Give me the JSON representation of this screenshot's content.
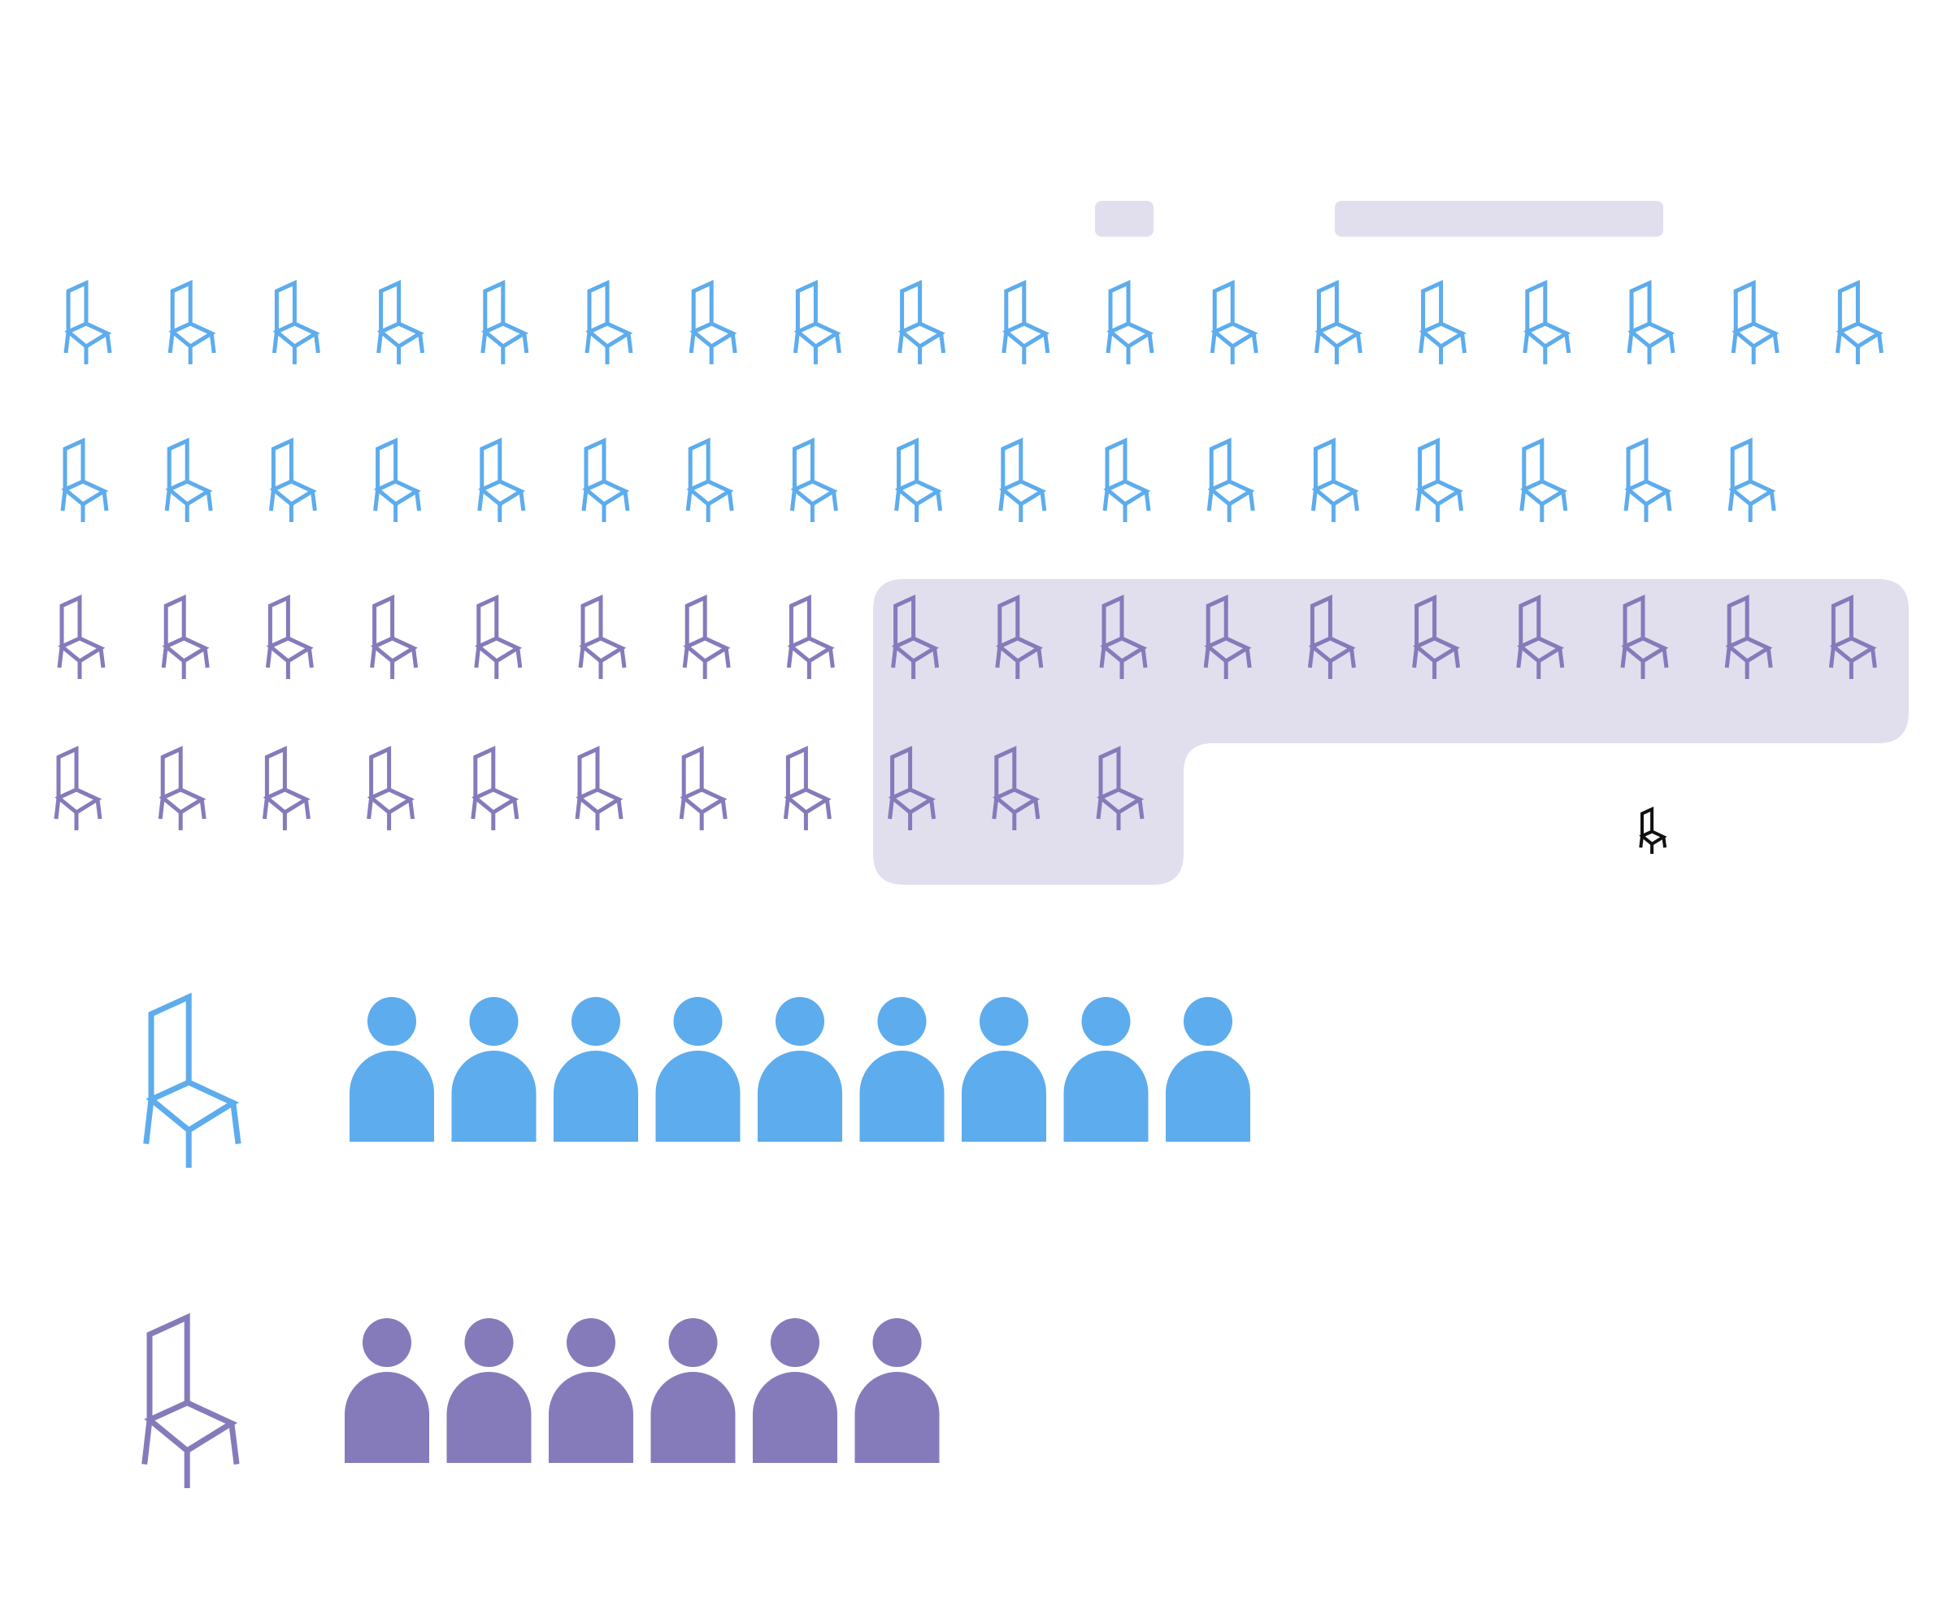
{
  "colors": {
    "series_a": "#5daced",
    "series_b": "#857bbb",
    "highlight": "#e1dfee",
    "cursor": "#111111",
    "background": "#ffffff"
  },
  "header": {
    "placeholders": [
      "placeholder-short",
      "placeholder-long"
    ]
  },
  "chart_data": {
    "type": "pictogram",
    "icon": "chair-icon",
    "rows": [
      {
        "series": "series_a",
        "count": 18
      },
      {
        "series": "series_a",
        "count": 17
      },
      {
        "series": "series_b",
        "count": 18,
        "highlighted_from": 8
      },
      {
        "series": "series_b",
        "count": 11,
        "highlighted_from": 8
      }
    ],
    "highlight": {
      "series": "series_b",
      "count": 13
    },
    "legend": [
      {
        "series": "series_a",
        "icon": "chair-icon",
        "people": 9
      },
      {
        "series": "series_b",
        "icon": "chair-icon",
        "people": 6
      }
    ],
    "cursor_icon": "chair-cursor-icon"
  }
}
